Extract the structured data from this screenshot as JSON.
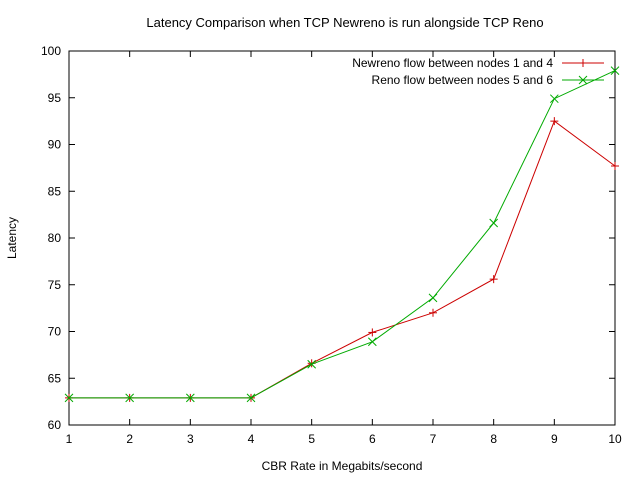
{
  "chart_data": {
    "type": "line",
    "title": "Latency Comparison when TCP Newreno is run alongside TCP Reno",
    "xlabel": "CBR Rate in Megabits/second",
    "ylabel": "Latency",
    "xlim": [
      1,
      10
    ],
    "ylim": [
      60,
      100
    ],
    "x_ticks": [
      1,
      2,
      3,
      4,
      5,
      6,
      7,
      8,
      9,
      10
    ],
    "y_ticks": [
      60,
      65,
      70,
      75,
      80,
      85,
      90,
      95,
      100
    ],
    "grid": false,
    "legend_position": "top-right",
    "x": [
      1,
      2,
      3,
      4,
      5,
      6,
      7,
      8,
      9,
      10
    ],
    "series": [
      {
        "name": "Newreno flow between nodes 1 and 4",
        "color": "#cc0000",
        "marker": "plus",
        "values": [
          62.9,
          62.9,
          62.9,
          62.9,
          66.6,
          69.9,
          72.0,
          75.6,
          92.5,
          87.7
        ]
      },
      {
        "name": "Reno flow between nodes 5 and 6",
        "color": "#00aa00",
        "marker": "cross",
        "values": [
          62.9,
          62.9,
          62.9,
          62.9,
          66.5,
          68.9,
          73.6,
          81.6,
          94.9,
          97.9
        ]
      }
    ]
  }
}
